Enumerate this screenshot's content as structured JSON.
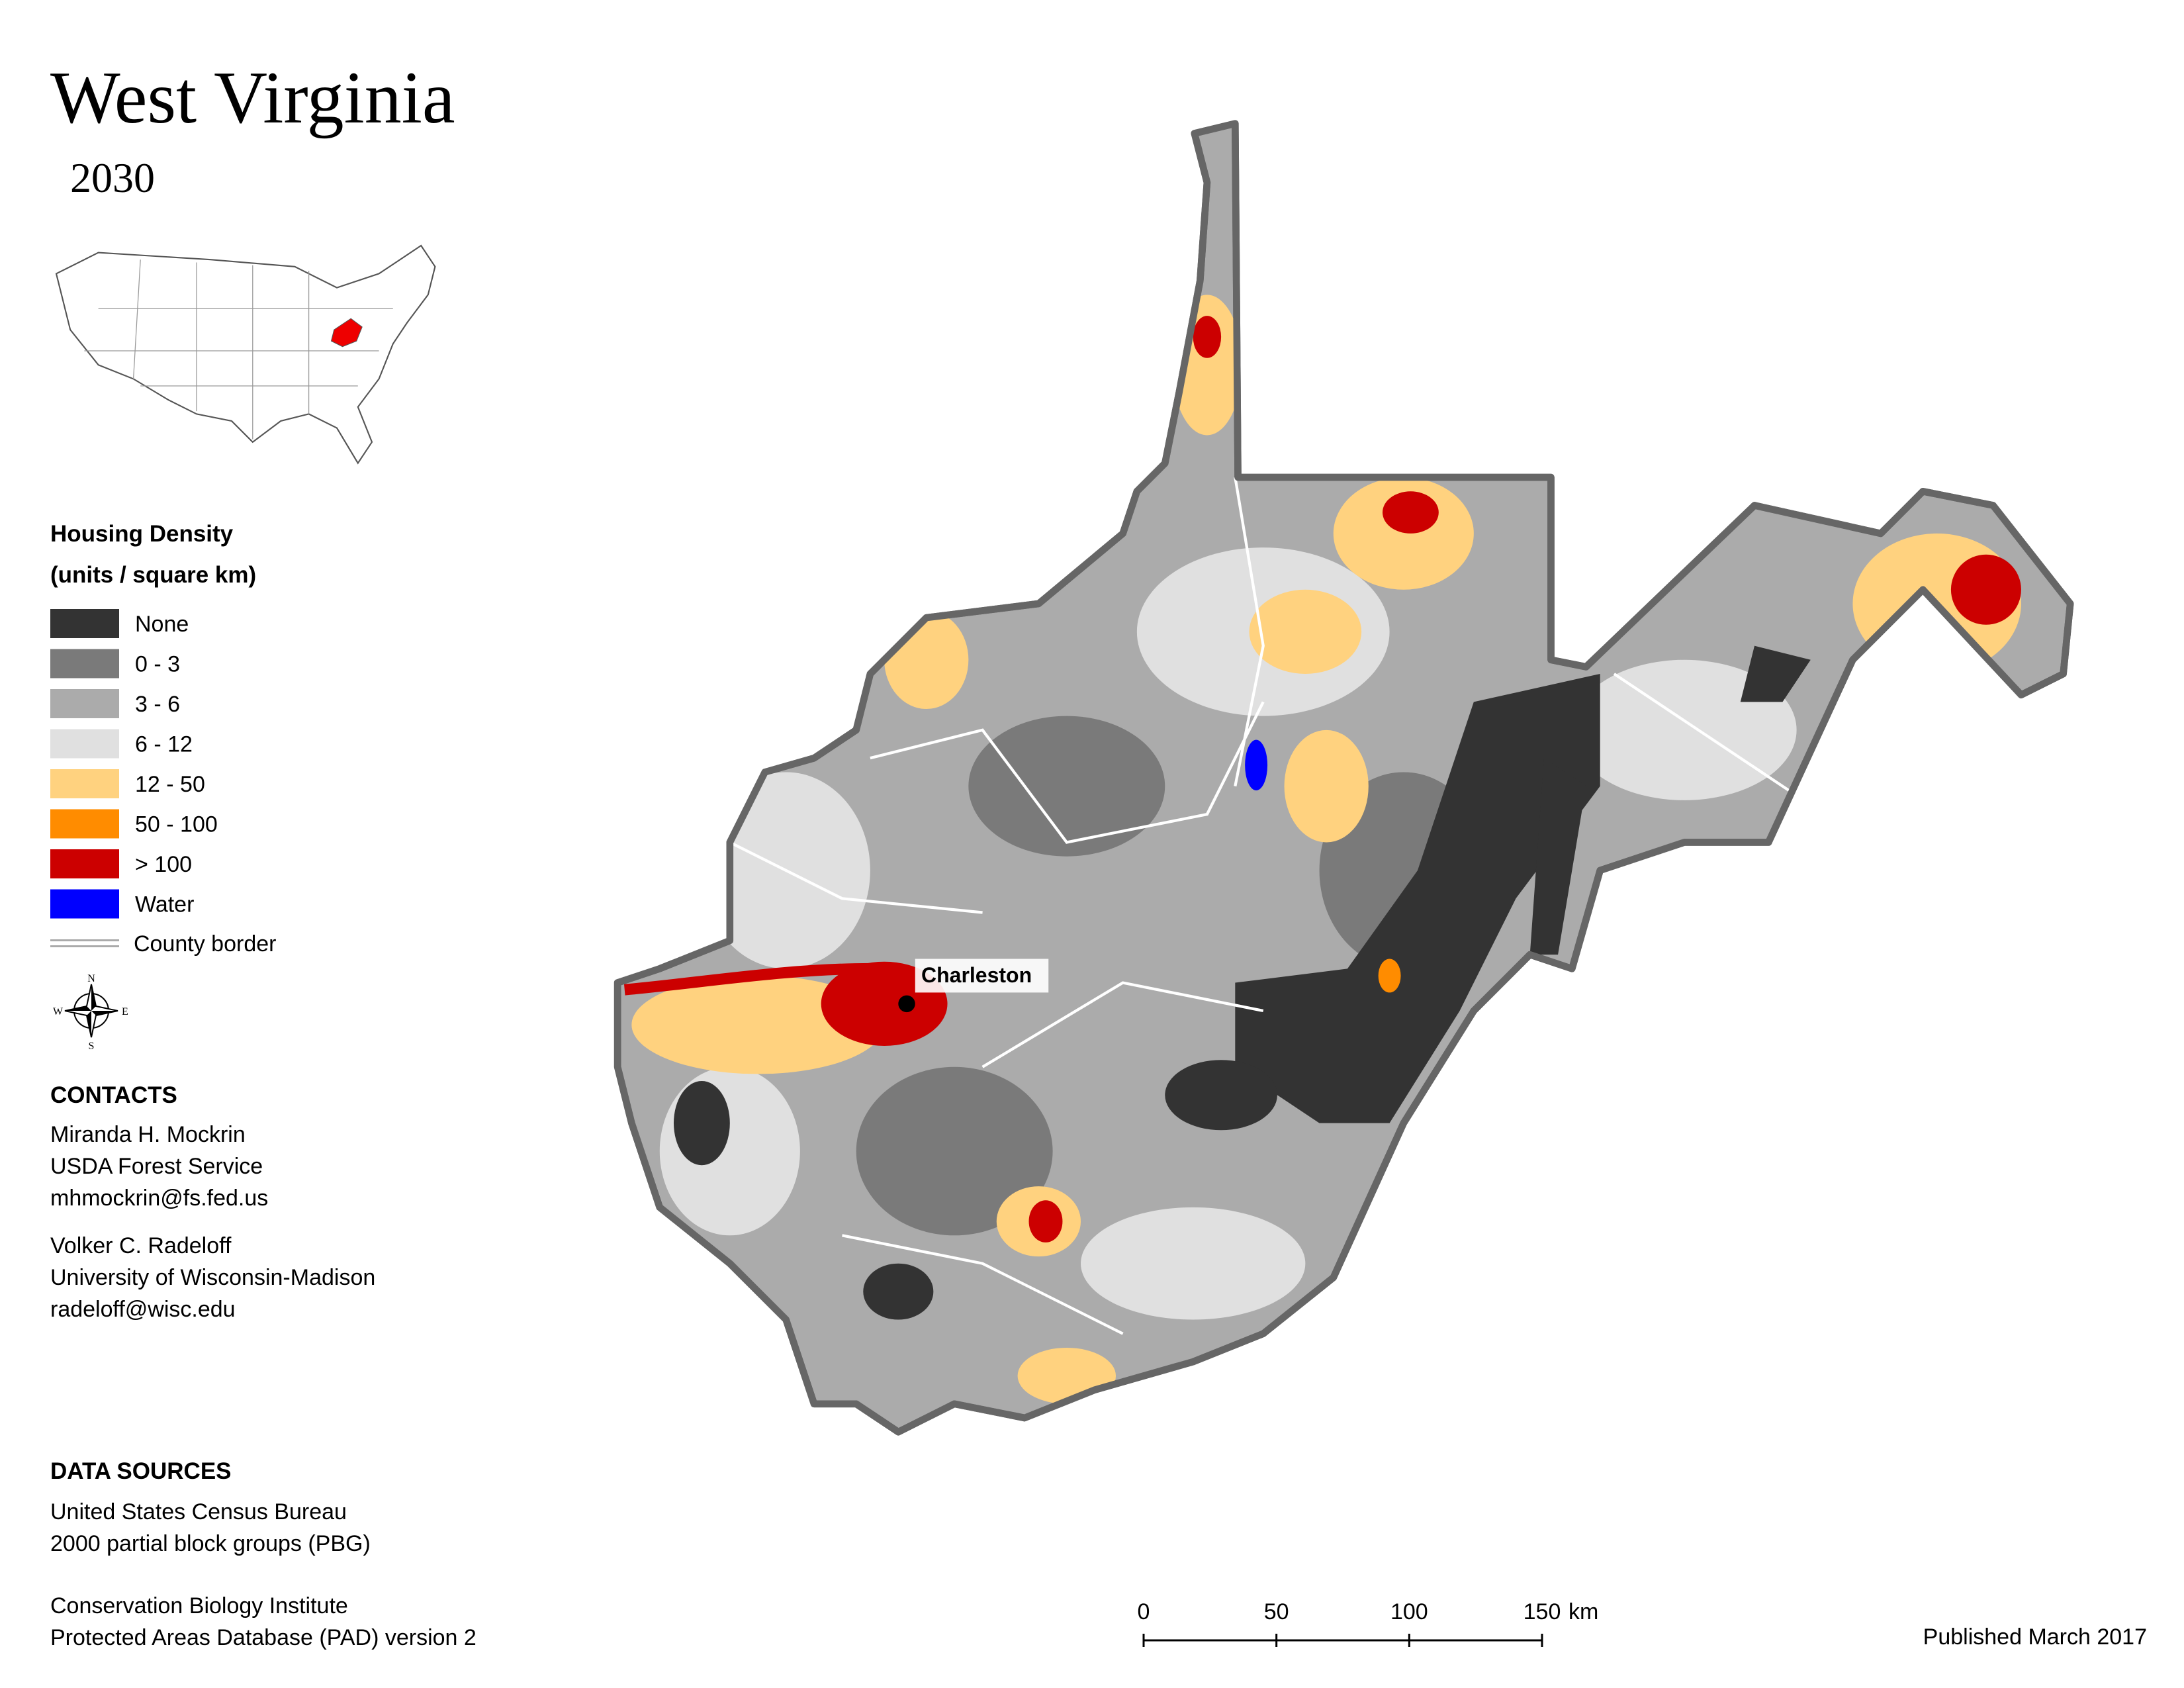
{
  "header": {
    "title": "West Virginia",
    "subtitle": "2030"
  },
  "legend": {
    "title": "Housing Density",
    "subtitle": "(units / square km)",
    "items": [
      {
        "label": "None",
        "color": "#333333"
      },
      {
        "label": "0 - 3",
        "color": "#7a7a7a"
      },
      {
        "label": "3 - 6",
        "color": "#ababab"
      },
      {
        "label": "6 - 12",
        "color": "#e0e0e0"
      },
      {
        "label": "12 - 50",
        "color": "#ffd27f"
      },
      {
        "label": "50 - 100",
        "color": "#ff8c00"
      },
      {
        "label": "> 100",
        "color": "#cc0000"
      },
      {
        "label": "Water",
        "color": "#0000ff"
      }
    ],
    "border": "County border"
  },
  "compass": {
    "n": "N",
    "e": "E",
    "s": "S",
    "w": "W"
  },
  "contacts": {
    "title": "CONTACTS",
    "people": [
      [
        "Miranda H. Mockrin",
        "USDA Forest Service",
        "mhmockrin@fs.fed.us"
      ],
      [
        "Volker C. Radeloff",
        "University of Wisconsin-Madison",
        "radeloff@wisc.edu"
      ]
    ]
  },
  "sources": {
    "title": "DATA SOURCES",
    "entries": [
      [
        "United States Census Bureau",
        "2000 partial block groups (PBG)"
      ],
      [
        "Conservation Biology Institute",
        "Protected Areas Database (PAD) version 2"
      ]
    ]
  },
  "city": "Charleston",
  "scale": {
    "ticks": [
      0,
      50,
      100,
      150
    ],
    "unit": "km"
  },
  "published": "Published March 2017"
}
